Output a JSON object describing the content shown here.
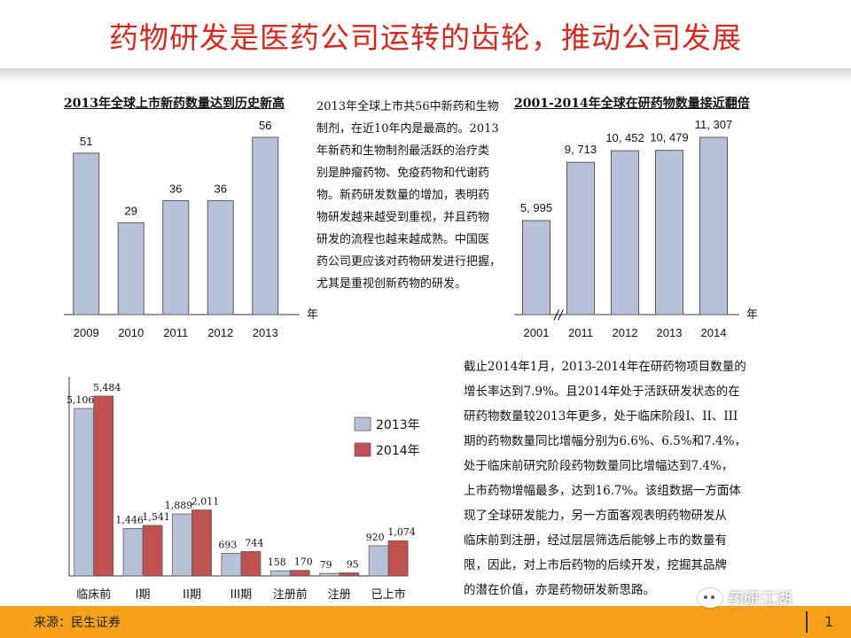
{
  "title": "药物研发是医药公司运转的齿轮，推动公司发展",
  "colors": {
    "bar_blue": "#b7c2d9",
    "bar_red": "#bf5250",
    "accent": "#f7a11a",
    "title_red": "#d42a1e"
  },
  "chart_data": [
    {
      "type": "bar",
      "title": "2013年全球上市新药数量达到历史新高",
      "categories": [
        "2009",
        "2010",
        "2011",
        "2012",
        "2013"
      ],
      "values": [
        51,
        29,
        36,
        36,
        56
      ],
      "value_labels": [
        "51",
        "29",
        "36",
        "36",
        "56"
      ],
      "xlabel": "年",
      "ylim": [
        0,
        56
      ]
    },
    {
      "type": "bar",
      "title": "2001-2014年全球在研药物数量接近翻倍",
      "categories": [
        "2001",
        "2011",
        "2012",
        "2013",
        "2014"
      ],
      "values": [
        5995,
        9713,
        10452,
        10479,
        11307
      ],
      "value_labels": [
        "5, 995",
        "9, 713",
        "10, 452",
        "10, 479",
        "11, 307"
      ],
      "xlabel": "年",
      "axis_break": "//",
      "ylim": [
        0,
        11307
      ]
    },
    {
      "type": "bar",
      "categories": [
        "临床前",
        "I期",
        "II期",
        "III期",
        "注册前",
        "注册",
        "已上市"
      ],
      "series": [
        {
          "name": "2013年",
          "values": [
            5106,
            1446,
            1889,
            693,
            158,
            79,
            920
          ],
          "labels": [
            "5,106",
            "1,446",
            "1,889",
            "693",
            "158",
            "79",
            "920"
          ]
        },
        {
          "name": "2014年",
          "values": [
            5484,
            1541,
            2011,
            744,
            170,
            95,
            1074
          ],
          "labels": [
            "5,484",
            "1,541",
            "2,011",
            "744",
            "170",
            "95",
            "1,074"
          ]
        }
      ],
      "legend_position": "right",
      "ylim": [
        0,
        5484
      ]
    }
  ],
  "paragraph1": "2013年全球上市共56中新药和生物\n制剂，在近10年内是最高的。2013\n年新药和生物制剂最活跃的治疗类\n别是肿瘤药物、免疫药物和代谢药\n物。新药研发数量的增加，表明药\n物研发越来越受到重视，并且药物\n研发的流程也越来越成熟。中国医\n药公司更应该对药物研发进行把握，\n尤其是重视创新药物的研发。",
  "paragraph2": "截止2014年1月，2013-2014年在研药物项目数量的\n增长率达到7.9%。且2014年处于活跃研发状态的在\n研药物数量较2013年更多，处于临床阶段I、II、III\n期的药物数量同比增幅分别为6.6%、6.5%和7.4%，\n处于临床前研究阶段药物数量同比增幅达到7.4%，\n上市药物增幅最多，达到16.7%。该组数据一方面体\n现了全球研发能力，另一方面客观表明药物研发从\n临床前到注册，经过层层筛选后能够上市的数量有\n限，因此，对上市后药物的后续开发，挖掘其品牌\n的潜在价值，亦是药物研发新思路。",
  "source": "来源：民生证券",
  "watermark": "药研江湖",
  "page_number": "1"
}
